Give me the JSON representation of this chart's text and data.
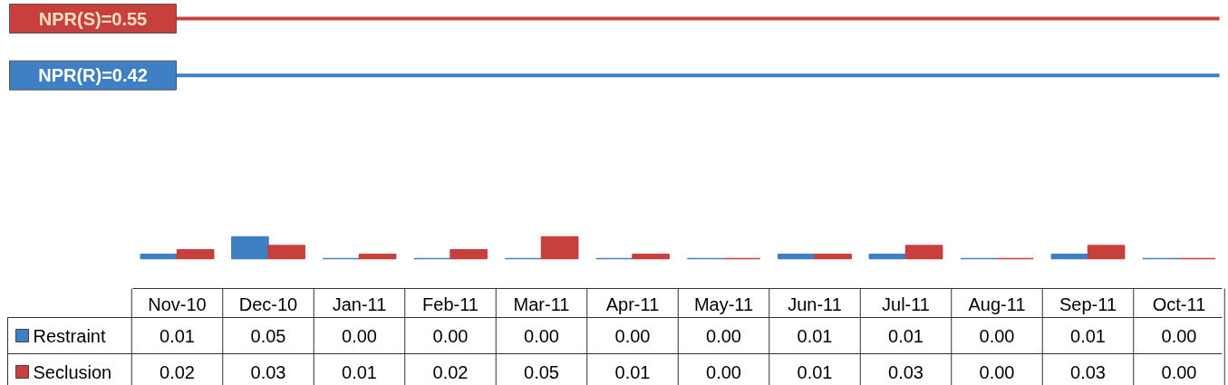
{
  "chart_data": {
    "type": "bar",
    "relative": false,
    "categories": [
      "Nov-10",
      "Dec-10",
      "Jan-11",
      "Feb-11",
      "Mar-11",
      "Apr-11",
      "May-11",
      "Jun-11",
      "Jul-11",
      "Aug-11",
      "Sep-11",
      "Oct-11"
    ],
    "series": [
      {
        "name": "Restraint",
        "color": "#3f7fc4",
        "values": [
          0.01,
          0.05,
          0,
          0,
          0,
          0,
          0,
          0.01,
          0.01,
          0,
          0.01,
          0
        ],
        "value_labels": [
          "0.01",
          "0.05",
          "0.00",
          "0.00",
          "0.00",
          "0.00",
          "0.00",
          "0.01",
          "0.01",
          "0.00",
          "0.01",
          "0.00"
        ]
      },
      {
        "name": "Seclusion",
        "color": "#c8403d",
        "values": [
          0.02,
          0.03,
          0.01,
          0.02,
          0.05,
          0.01,
          0,
          0.01,
          0.03,
          0,
          0.03,
          0
        ],
        "value_labels": [
          "0.02",
          "0.03",
          "0.01",
          "0.02",
          "0.05",
          "0.01",
          "0.00",
          "0.01",
          "0.03",
          "0.00",
          "0.03",
          "0.00"
        ]
      }
    ],
    "ref_lines": [
      {
        "axis": "y",
        "value": 0.55,
        "label": "NPR(S)=0.55",
        "color": "#c8403d"
      },
      {
        "axis": "y",
        "value": 0.42,
        "label": "NPR(R)=0.42",
        "color": "#3f7fc4"
      }
    ],
    "legend": "bottom",
    "grid": false
  }
}
